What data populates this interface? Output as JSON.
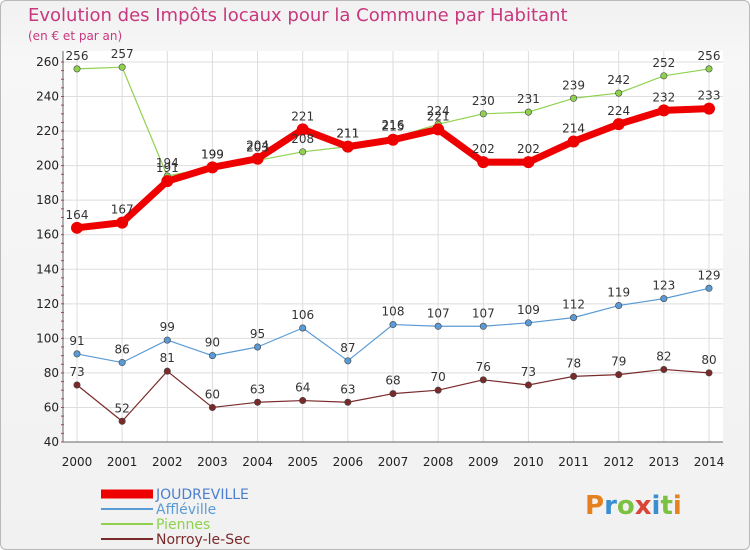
{
  "header": {
    "title": "Evolution des Impôts locaux pour la Commune par Habitant",
    "subtitle": "(en € et par an)"
  },
  "logo": {
    "text": "Proxiti",
    "colors": [
      "#e5821f",
      "#3a8fd3",
      "#7cc242",
      "#d94537",
      "#3a8fd3",
      "#7cc242",
      "#e5821f"
    ]
  },
  "chart_data": {
    "type": "line",
    "title": "Evolution des Impôts locaux pour la Commune par Habitant",
    "subtitle": "(en € et par an)",
    "x": [
      "2000",
      "2001",
      "2002",
      "2003",
      "2004",
      "2005",
      "2006",
      "2007",
      "2008",
      "2009",
      "2010",
      "2011",
      "2012",
      "2013",
      "2014"
    ],
    "ylim": [
      40,
      260
    ],
    "yticks": [
      40,
      60,
      80,
      100,
      120,
      140,
      160,
      180,
      200,
      220,
      240,
      260
    ],
    "grid": true,
    "legend_position": "bottom-left",
    "series": [
      {
        "name": "Piennes",
        "color": "#8fd14f",
        "width": 1.2,
        "marker": 3.2,
        "values": [
          256,
          257,
          194,
          199,
          203,
          208,
          211,
          216,
          224,
          230,
          231,
          239,
          242,
          252,
          256
        ]
      },
      {
        "name": "Affléville",
        "color": "#5b9bd5",
        "width": 1.2,
        "marker": 3.2,
        "values": [
          91,
          86,
          99,
          90,
          95,
          106,
          87,
          108,
          107,
          107,
          109,
          112,
          119,
          123,
          129
        ]
      },
      {
        "name": "Norroy-le-Sec",
        "color": "#7b2a2a",
        "width": 1.2,
        "marker": 3.2,
        "values": [
          73,
          52,
          81,
          60,
          63,
          64,
          63,
          68,
          70,
          76,
          73,
          78,
          79,
          82,
          80
        ]
      },
      {
        "name": "JOUDREVILLE",
        "color": "#ee0000",
        "width": 7,
        "marker": 6,
        "values": [
          164,
          167,
          191,
          199,
          204,
          221,
          211,
          215,
          221,
          202,
          202,
          214,
          224,
          232,
          233
        ]
      }
    ],
    "legend_order": [
      "JOUDREVILLE",
      "Affléville",
      "Piennes",
      "Norroy-le-Sec"
    ]
  }
}
